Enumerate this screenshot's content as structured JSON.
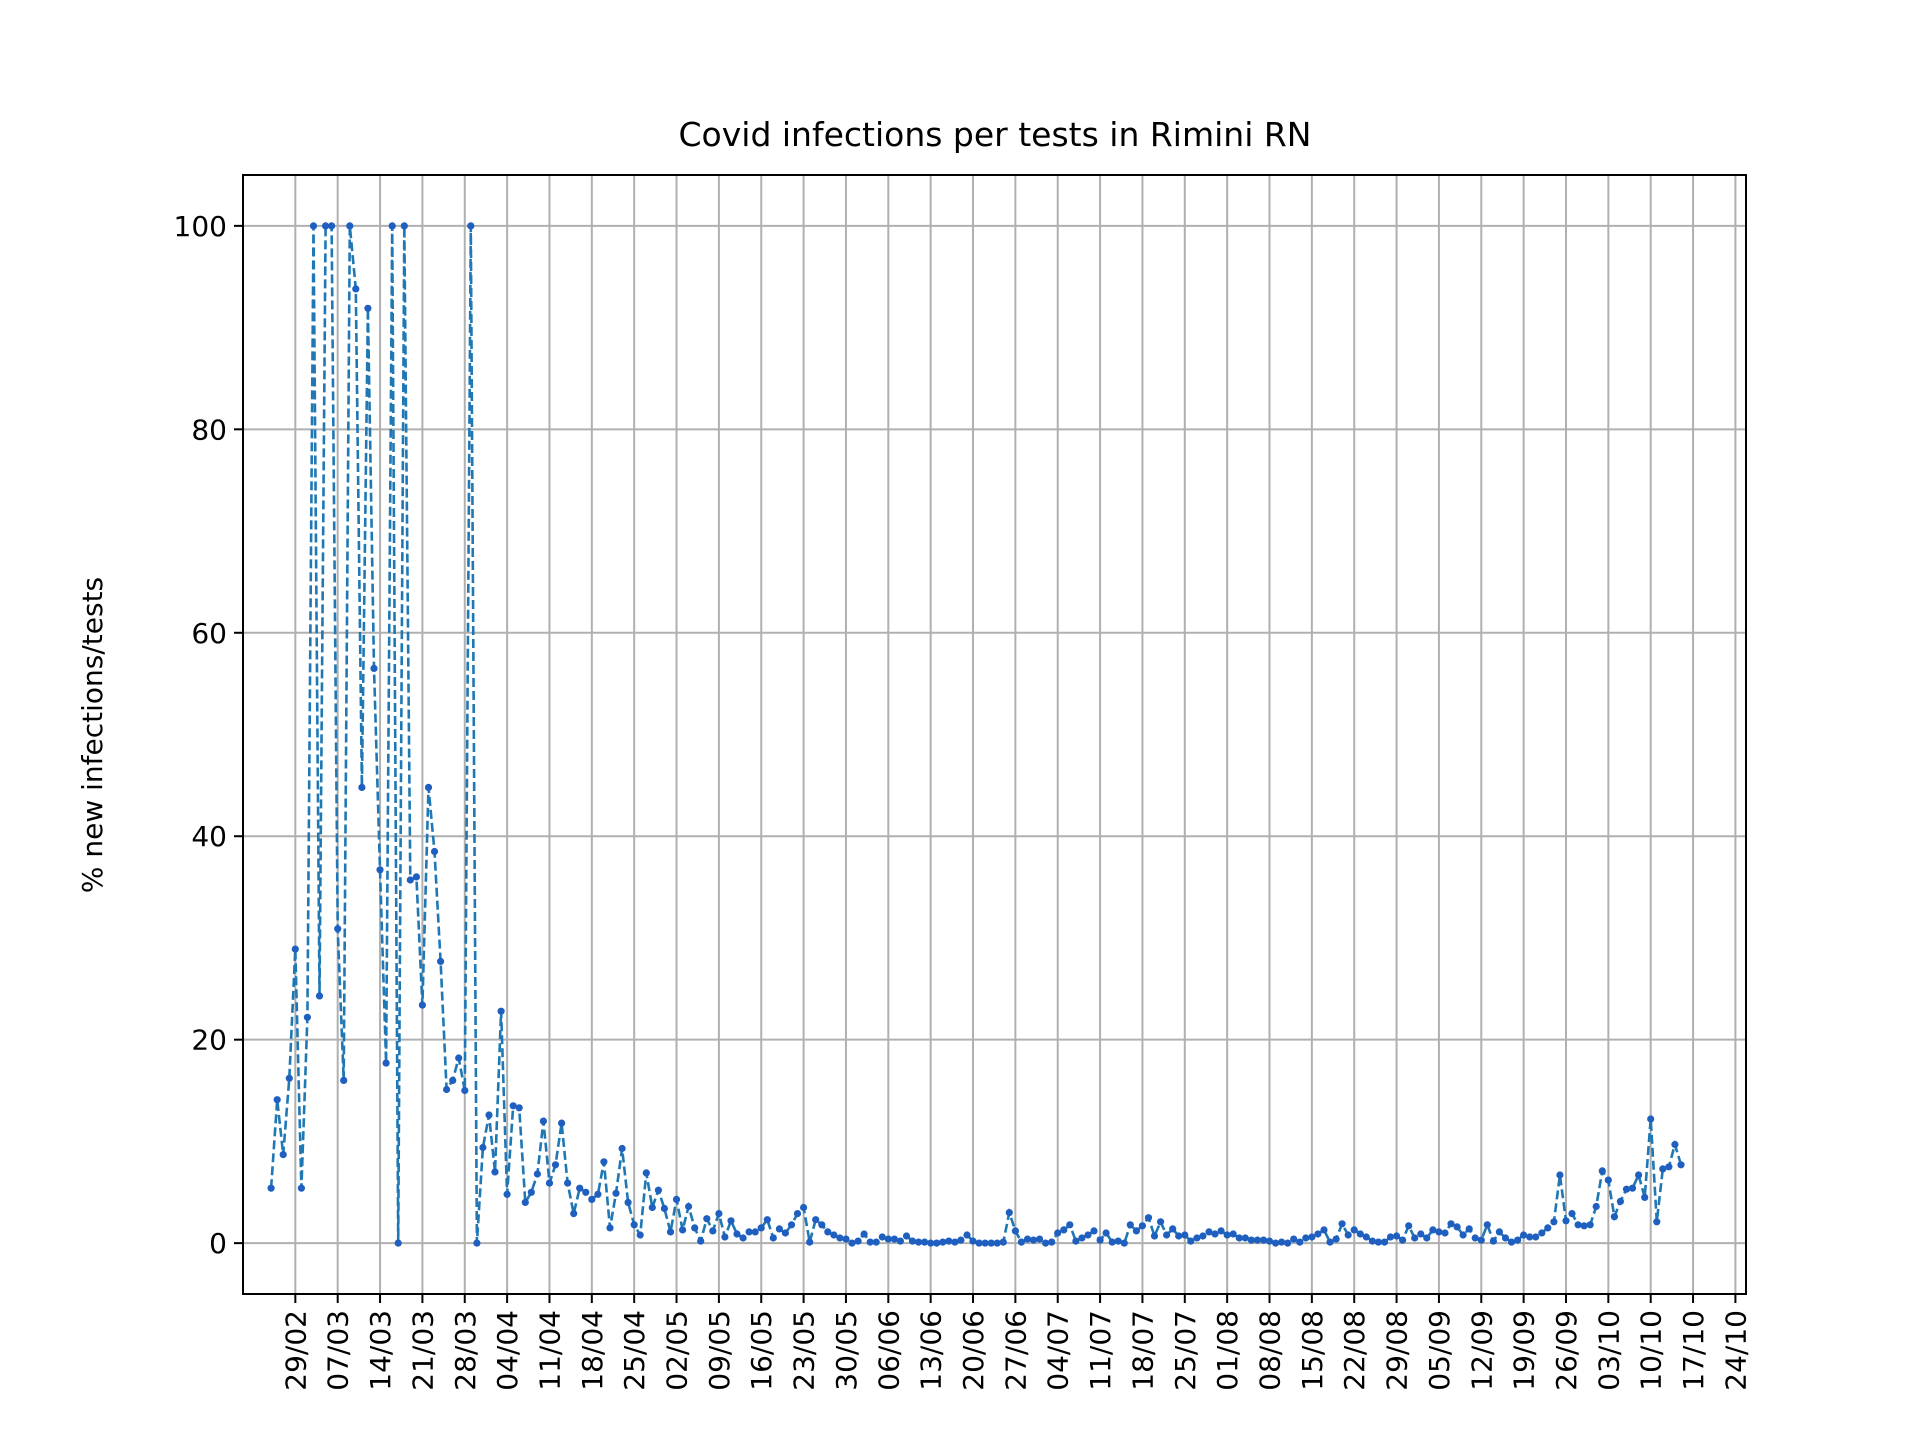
{
  "chart_data": {
    "type": "line",
    "title": "Covid infections per tests in Rimini RN",
    "xlabel": "",
    "ylabel": "% new infections/tests",
    "x_tick_labels": [
      "29/02",
      "07/03",
      "14/03",
      "21/03",
      "28/03",
      "04/04",
      "11/04",
      "18/04",
      "25/04",
      "02/05",
      "09/05",
      "16/05",
      "23/05",
      "30/05",
      "06/06",
      "13/06",
      "20/06",
      "27/06",
      "04/07",
      "11/07",
      "18/07",
      "25/07",
      "01/08",
      "08/08",
      "15/08",
      "22/08",
      "29/08",
      "05/09",
      "12/09",
      "19/09",
      "26/09",
      "03/10",
      "10/10",
      "17/10",
      "24/10"
    ],
    "x_start_date": "2020-02-25",
    "y_ticks": [
      0,
      20,
      40,
      60,
      80,
      100
    ],
    "ylim": [
      -5,
      105
    ],
    "grid": true,
    "series": [
      {
        "color": "#1f77b4",
        "marker_color": "#1f5fbf",
        "values": [
          5.4,
          14.1,
          8.7,
          16.2,
          28.9,
          5.4,
          22.2,
          100,
          24.3,
          100,
          100,
          30.9,
          16.0,
          100,
          93.8,
          44.8,
          91.9,
          56.5,
          36.7,
          17.7,
          100,
          0,
          100,
          35.7,
          36.0,
          23.4,
          44.8,
          38.5,
          27.7,
          15.1,
          16.0,
          18.2,
          15.0,
          100,
          0,
          9.4,
          12.6,
          7.0,
          22.8,
          4.8,
          13.5,
          13.3,
          4.0,
          5.0,
          6.8,
          12.0,
          5.9,
          7.7,
          11.8,
          5.9,
          2.9,
          5.4,
          5.0,
          4.3,
          4.8,
          8.0,
          1.5,
          4.9,
          9.3,
          4.0,
          1.8,
          0.8,
          6.9,
          3.5,
          5.2,
          3.4,
          1.1,
          4.3,
          1.3,
          3.6,
          1.5,
          0.2,
          2.4,
          1.2,
          2.9,
          0.6,
          2.2,
          0.9,
          0.5,
          1.1,
          1.1,
          1.5,
          2.3,
          0.5,
          1.4,
          1.0,
          1.8,
          2.9,
          3.5,
          0.1,
          2.3,
          1.8,
          1.1,
          0.8,
          0.5,
          0.4,
          0,
          0.2,
          0.9,
          0.1,
          0.1,
          0.6,
          0.4,
          0.4,
          0.2,
          0.7,
          0.2,
          0.1,
          0.1,
          0,
          0,
          0.1,
          0.2,
          0.1,
          0.3,
          0.8,
          0.2,
          0,
          0,
          0,
          0,
          0.1,
          3.0,
          1.2,
          0.1,
          0.4,
          0.3,
          0.4,
          0,
          0.1,
          1.0,
          1.3,
          1.8,
          0.2,
          0.5,
          0.8,
          1.2,
          0.3,
          1.0,
          0.1,
          0.2,
          0,
          1.8,
          1.2,
          1.7,
          2.5,
          0.7,
          2.1,
          0.8,
          1.4,
          0.7,
          0.8,
          0.2,
          0.5,
          0.7,
          1.1,
          0.9,
          1.2,
          0.8,
          0.9,
          0.5,
          0.5,
          0.3,
          0.3,
          0.3,
          0.2,
          0,
          0.1,
          0,
          0.4,
          0.1,
          0.5,
          0.6,
          0.9,
          1.3,
          0.1,
          0.4,
          1.9,
          0.8,
          1.3,
          0.9,
          0.6,
          0.2,
          0.1,
          0.1,
          0.6,
          0.7,
          0.3,
          1.7,
          0.5,
          0.9,
          0.5,
          1.3,
          1.1,
          1.0,
          1.9,
          1.6,
          0.8,
          1.4,
          0.5,
          0.3,
          1.8,
          0.2,
          1.1,
          0.5,
          0.1,
          0.3,
          0.8,
          0.6,
          0.6,
          1.0,
          1.5,
          2.1,
          6.7,
          2.2,
          2.9,
          1.8,
          1.7,
          1.8,
          3.6,
          7.1,
          6.2,
          2.6,
          4.1,
          5.3,
          5.4,
          6.7,
          4.5,
          12.2,
          2.1,
          7.3,
          7.5,
          9.7,
          7.7
        ]
      }
    ]
  }
}
